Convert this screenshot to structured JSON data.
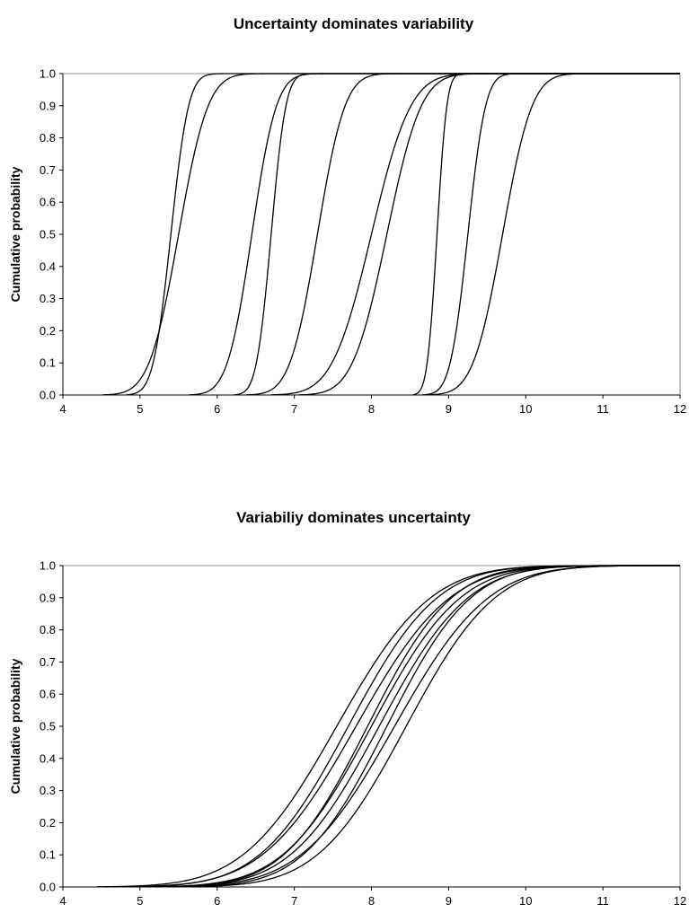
{
  "chart_data": [
    {
      "type": "line",
      "title": "Uncertainty dominates variability",
      "xlabel": "",
      "ylabel": "Cumulative probability",
      "xlim": [
        4,
        12
      ],
      "ylim": [
        0,
        1
      ],
      "xticks": [
        "4",
        "5",
        "6",
        "7",
        "8",
        "9",
        "10",
        "11",
        "12"
      ],
      "yticks": [
        "0.0",
        "0.1",
        "0.2",
        "0.3",
        "0.4",
        "0.5",
        "0.6",
        "0.7",
        "0.8",
        "0.9",
        "1.0"
      ],
      "grid": false,
      "curve_shape": "normal_cdf",
      "series": [
        {
          "mean": 5.4,
          "sd": 0.18
        },
        {
          "mean": 5.5,
          "sd": 0.3
        },
        {
          "mean": 6.45,
          "sd": 0.25
        },
        {
          "mean": 6.7,
          "sd": 0.15
        },
        {
          "mean": 7.3,
          "sd": 0.28
        },
        {
          "mean": 8.0,
          "sd": 0.4
        },
        {
          "mean": 8.2,
          "sd": 0.35
        },
        {
          "mean": 8.85,
          "sd": 0.1
        },
        {
          "mean": 9.25,
          "sd": 0.18
        },
        {
          "mean": 9.7,
          "sd": 0.3
        }
      ]
    },
    {
      "type": "line",
      "title": "Variabiliy dominates uncertainty",
      "xlabel": "",
      "ylabel": "Cumulative probability",
      "xlim": [
        4,
        12
      ],
      "ylim": [
        0,
        1
      ],
      "xticks": [
        "4",
        "5",
        "6",
        "7",
        "8",
        "9",
        "10",
        "11",
        "12"
      ],
      "yticks": [
        "0.0",
        "0.1",
        "0.2",
        "0.3",
        "0.4",
        "0.5",
        "0.6",
        "0.7",
        "0.8",
        "0.9",
        "1.0"
      ],
      "grid": false,
      "curve_shape": "normal_cdf",
      "series": [
        {
          "mean": 7.55,
          "sd": 0.95
        },
        {
          "mean": 7.7,
          "sd": 0.9
        },
        {
          "mean": 7.8,
          "sd": 0.95
        },
        {
          "mean": 7.95,
          "sd": 0.85
        },
        {
          "mean": 8.0,
          "sd": 0.9
        },
        {
          "mean": 8.1,
          "sd": 0.9
        },
        {
          "mean": 8.2,
          "sd": 0.85
        },
        {
          "mean": 8.3,
          "sd": 0.95
        },
        {
          "mean": 8.45,
          "sd": 0.9
        }
      ]
    }
  ]
}
